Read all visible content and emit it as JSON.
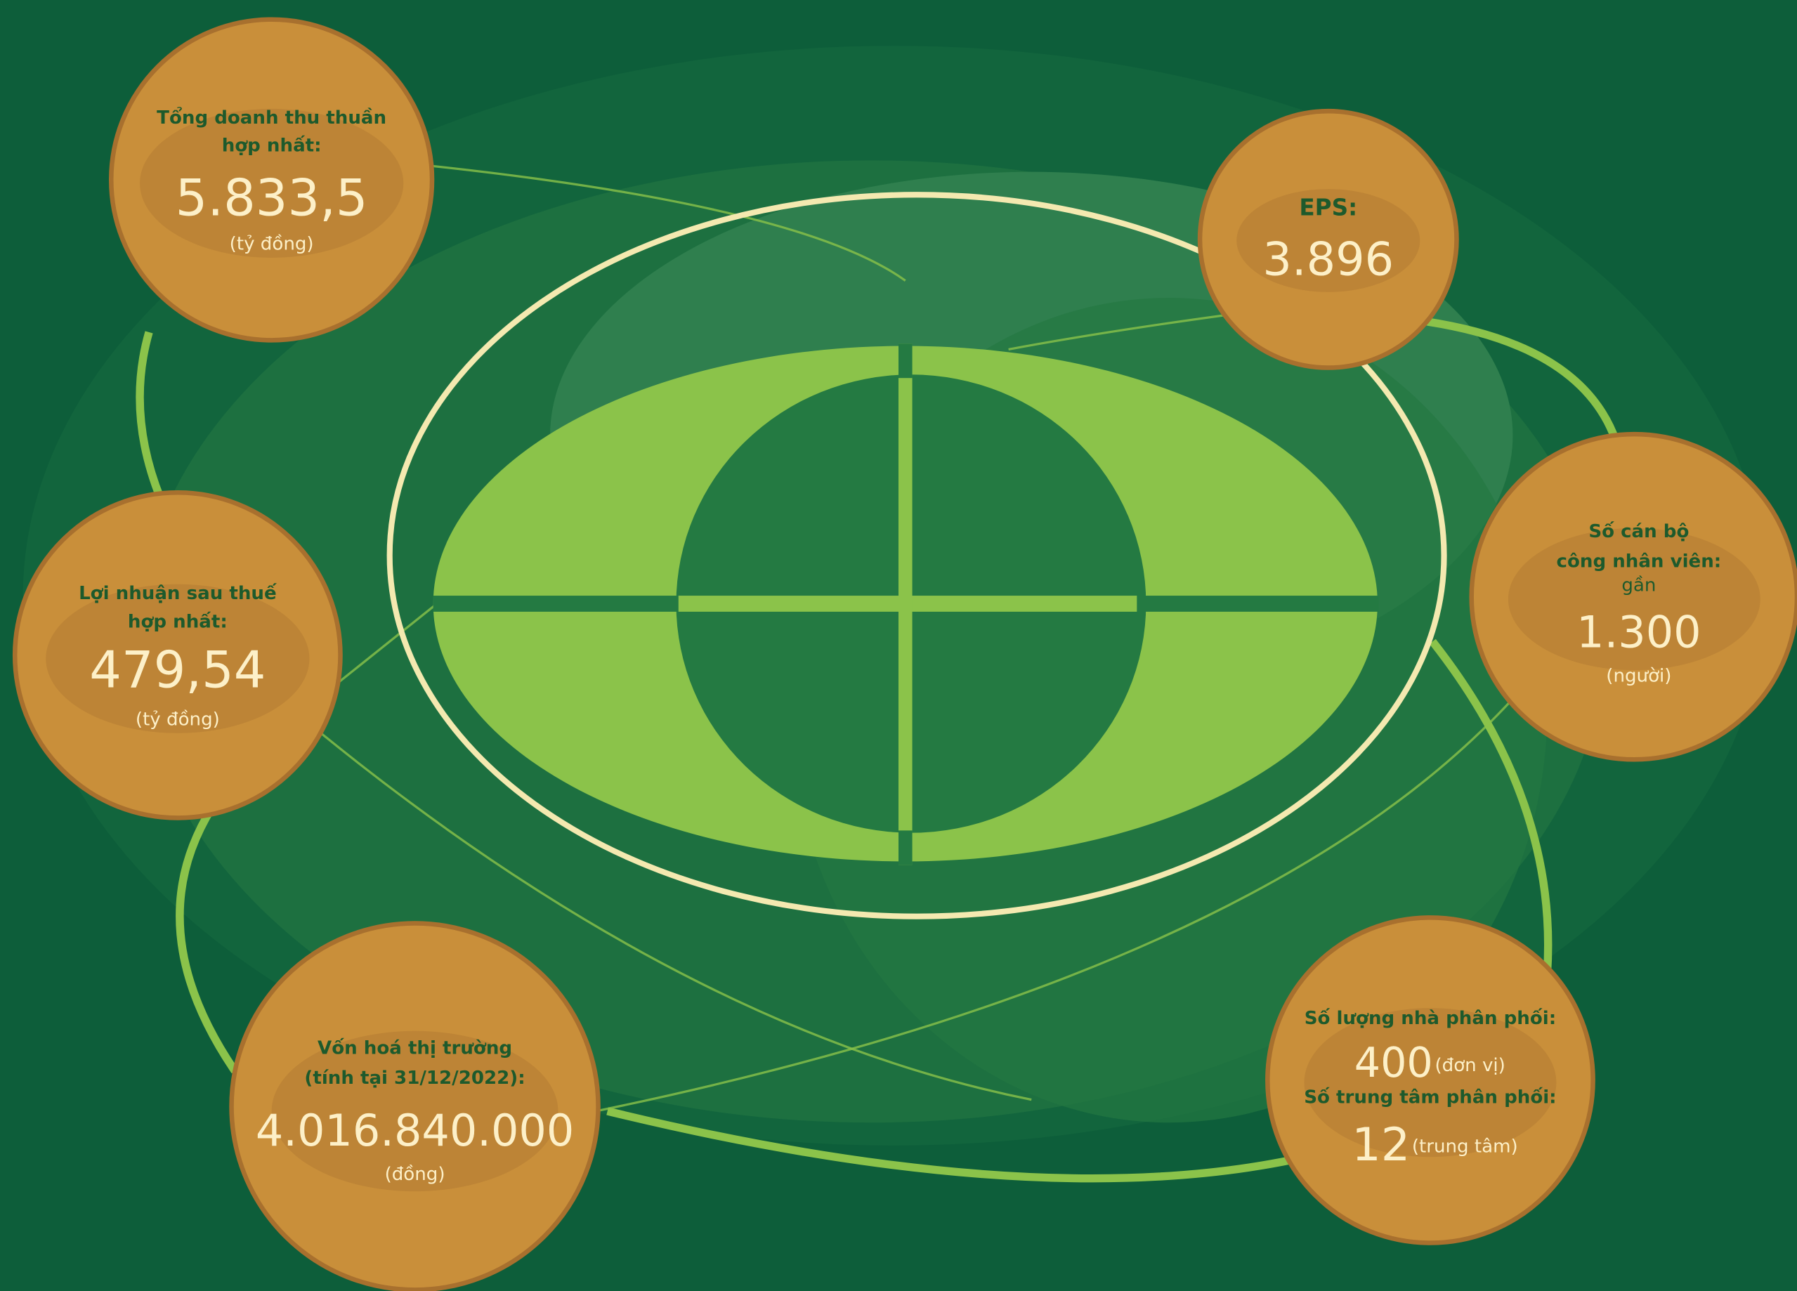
{
  "metrics": [
    {
      "label": [
        "Tổng doanh thu thuần",
        "hợp nhất:"
      ],
      "value": "5.833,5",
      "unit": "(tỷ đồng)"
    },
    {
      "label": [
        "Lợi nhuận sau thuế",
        "hợp nhất:"
      ],
      "value": "479,54",
      "unit": "(tỷ đồng)"
    },
    {
      "label": [
        "Vốn hoá thị trường",
        "(tính tại 31/12/2022):"
      ],
      "value": "4.016.840.000",
      "unit": "(đồng)"
    },
    {
      "label": [
        "EPS:"
      ],
      "value": "3.896"
    },
    {
      "label": [
        "Số cán bộ",
        "công nhân viên:"
      ],
      "qualifier": "gần",
      "value": "1.300",
      "unit": "(người)"
    },
    {
      "label": [
        "Số lượng nhà phân phối:"
      ],
      "value": "400",
      "unit": "(đơn vị)"
    },
    {
      "label": [
        "Số trung tâm phân phối:"
      ],
      "value": "12",
      "unit": "(trung tâm)"
    }
  ]
}
